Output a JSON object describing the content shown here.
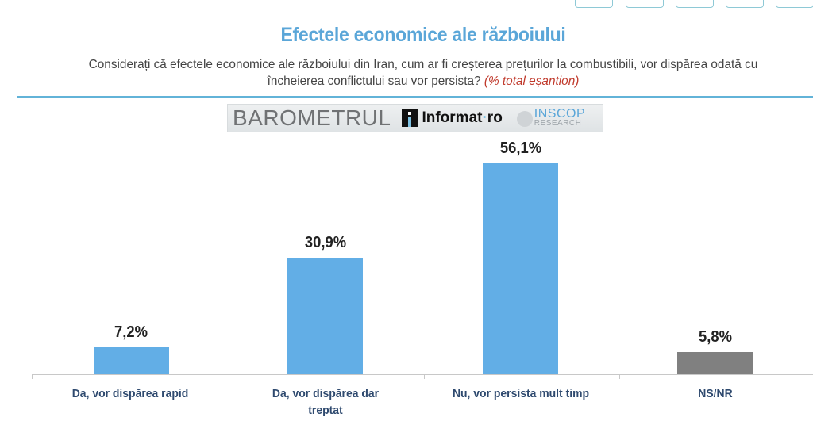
{
  "window": {
    "top_buttons": [
      "",
      "",
      "",
      "",
      ""
    ]
  },
  "header": {
    "title": "Efectele economice ale războiului",
    "subtitle": "Considerați că efectele economice ale războiului din Iran, cum ar fi creșterea prețurilor la combustibili, vor dispărea odată cu încheierea conflictului sau vor persista?",
    "subtitle_note": "(% total eșantion)"
  },
  "logo": {
    "barometer": "BAROMETRUL",
    "informat": "Informat",
    "informat_dot": "·",
    "informat_tld": "ro",
    "inscop": "INSCOP",
    "inscop_sub": "RESEARCH"
  },
  "colors": {
    "title": "#5aa6d8",
    "bar_primary": "#62aee6",
    "bar_neutral": "#808080",
    "category_text": "#2f4a6f",
    "rule": "#62b3d8",
    "note": "#c0392b"
  },
  "chart_data": {
    "type": "bar",
    "title": "Efectele economice ale războiului",
    "subtitle": "Considerați că efectele economice ale războiului din Iran, cum ar fi creșterea prețurilor la combustibili, vor dispărea odată cu încheierea conflictului sau vor persista? (% total eșantion)",
    "categories": [
      "Da, vor dispărea rapid",
      "Da, vor dispărea dar treptat",
      "Nu, vor persista mult timp",
      "NS/NR"
    ],
    "values": [
      7.2,
      30.9,
      56.1,
      5.8
    ],
    "value_labels": [
      "7,2%",
      "30,9%",
      "56,1%",
      "5,8%"
    ],
    "bar_colors": [
      "#62aee6",
      "#62aee6",
      "#62aee6",
      "#808080"
    ],
    "xlabel": "",
    "ylabel": "",
    "ylim": [
      0,
      60
    ],
    "grid": false,
    "legend": null
  }
}
